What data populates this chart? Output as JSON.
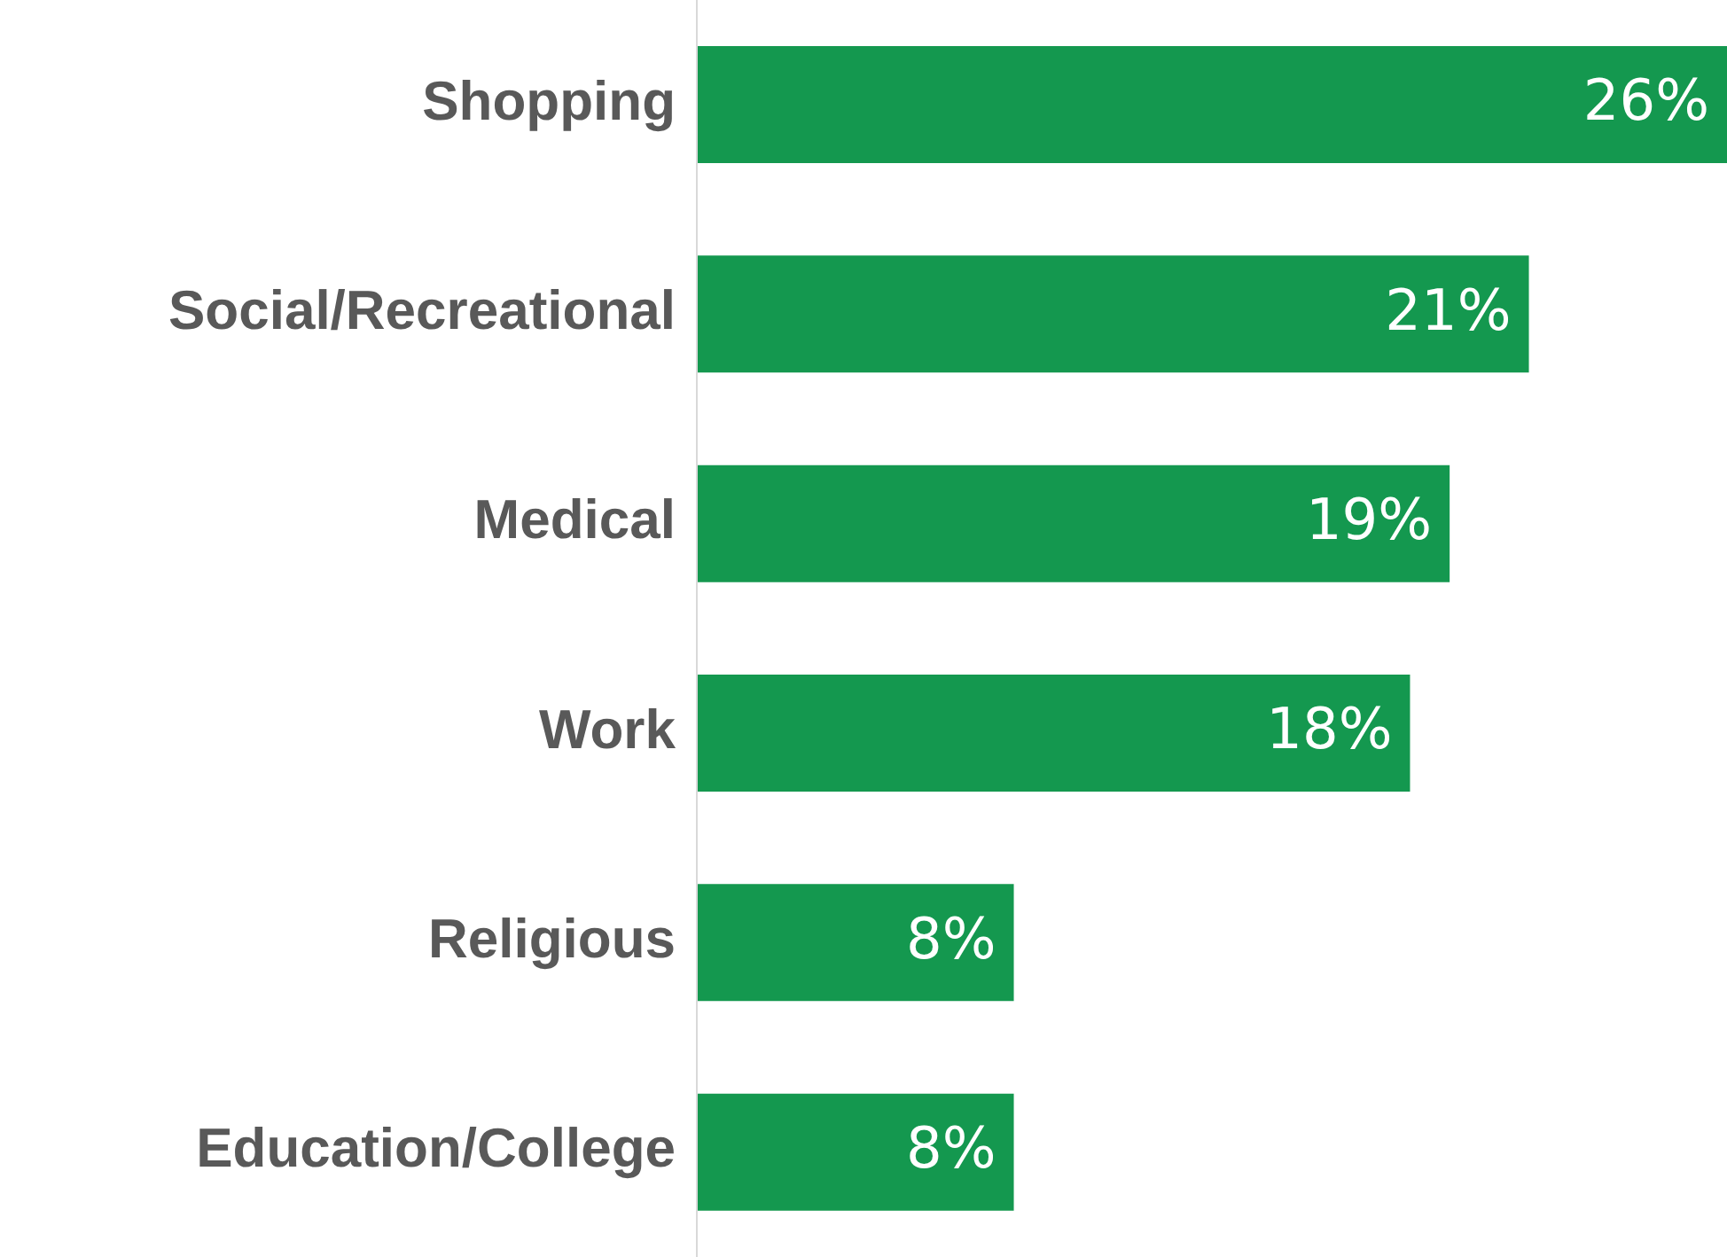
{
  "chart_data": {
    "type": "bar",
    "orientation": "horizontal",
    "categories": [
      "Shopping",
      "Social/Recreational",
      "Medical",
      "Work",
      "Religious",
      "Education/College"
    ],
    "values": [
      26,
      21,
      19,
      18,
      8,
      8
    ],
    "value_labels": [
      "26%",
      "21%",
      "19%",
      "18%",
      "8%",
      "8%"
    ],
    "color": "#14984f"
  }
}
